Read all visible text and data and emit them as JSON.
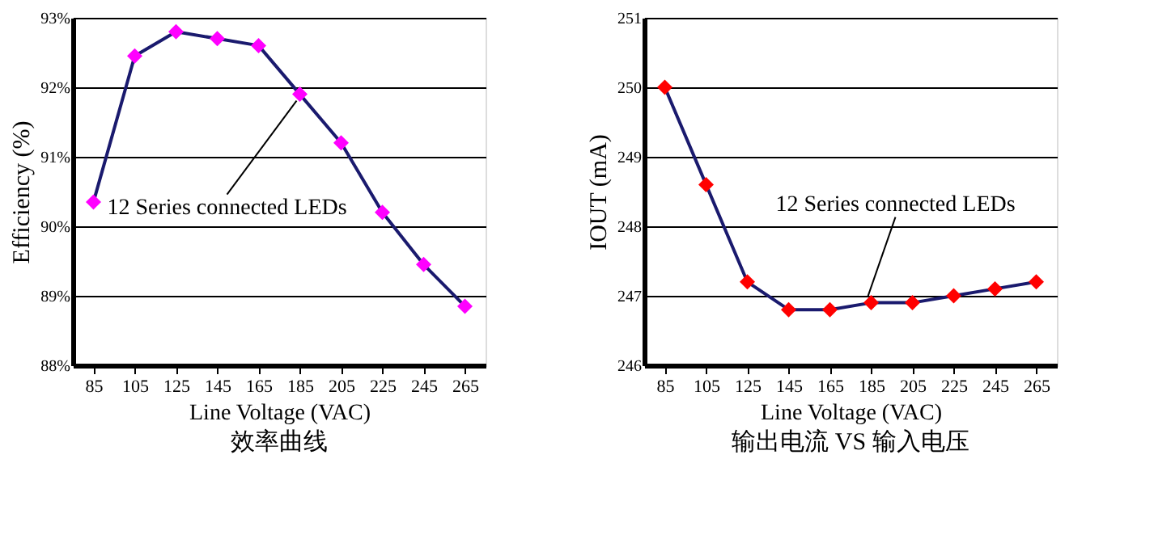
{
  "chart_data": [
    {
      "type": "line",
      "title": "效率曲线",
      "xlabel": "Line Voltage (VAC)",
      "ylabel": "Efficiency (%)",
      "categories": [
        "85",
        "105",
        "125",
        "145",
        "165",
        "185",
        "205",
        "225",
        "245",
        "265"
      ],
      "series": [
        {
          "color": "#1a1a6e",
          "colors": [
            "#ff00ff",
            "#ff00ff",
            "#ff00ff",
            "#ff00ff",
            "#ff00ff",
            "#ff00ff",
            "#ff00ff",
            "#ff00ff",
            "#ff00ff",
            "#ff00ff"
          ],
          "values": [
            90.35,
            92.45,
            92.8,
            92.7,
            92.6,
            91.9,
            91.2,
            90.2,
            89.45,
            88.85
          ]
        }
      ],
      "ylim": [
        88,
        93
      ],
      "yticks": [
        {
          "value": 88,
          "label": "88%"
        },
        {
          "value": 89,
          "label": "89%"
        },
        {
          "value": 90,
          "label": "90%"
        },
        {
          "value": 91,
          "label": "91%"
        },
        {
          "value": 92,
          "label": "92%"
        },
        {
          "value": 93,
          "label": "93%"
        }
      ],
      "grid": "y",
      "marker": "diamond",
      "line_style": "solid",
      "annotations": [
        {
          "text": "12 Series connected LEDs",
          "x": "185",
          "y": 91.9
        }
      ]
    },
    {
      "type": "line",
      "title": "输出电流 VS 输入电压",
      "xlabel": "Line Voltage (VAC)",
      "ylabel": "IOUT (mA)",
      "categories": [
        "85",
        "105",
        "125",
        "145",
        "165",
        "185",
        "205",
        "225",
        "245",
        "265"
      ],
      "series": [
        {
          "color": "#1a1a6e",
          "colors": [
            "#ff0000",
            "#ff0000",
            "#ff0000",
            "#ff0000",
            "#ff0000",
            "#ff0000",
            "#ff0000",
            "#ff0000",
            "#ff0000",
            "#ff0000"
          ],
          "values": [
            250.0,
            248.6,
            247.2,
            246.8,
            246.8,
            246.9,
            246.9,
            247.0,
            247.1,
            247.2
          ]
        }
      ],
      "ylim": [
        246,
        251
      ],
      "yticks": [
        246,
        247,
        248,
        249,
        250,
        251
      ],
      "grid": "y",
      "marker": "diamond",
      "line_style": "solid",
      "annotations": [
        {
          "text": "12 Series connected LEDs",
          "x": "185",
          "y": 246.9
        }
      ]
    }
  ]
}
